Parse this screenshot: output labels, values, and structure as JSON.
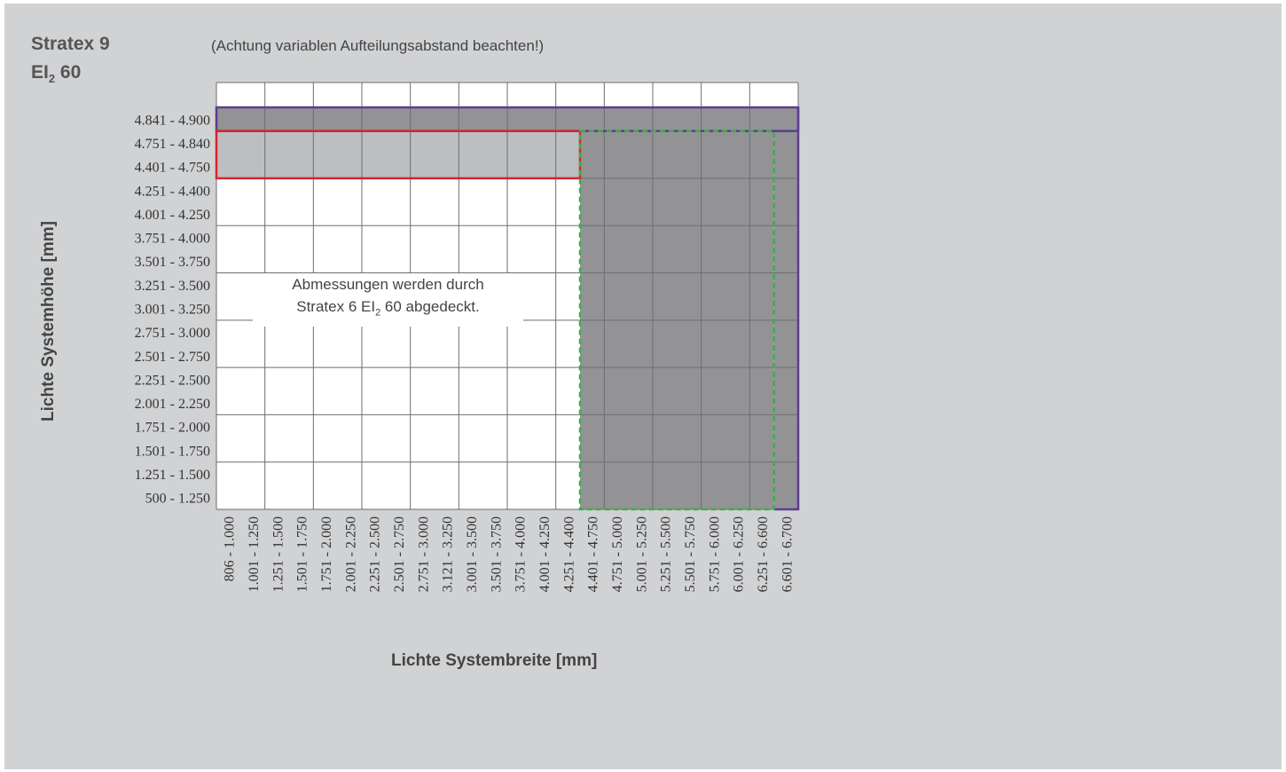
{
  "header": {
    "title_line1": "Stratex 9",
    "title_line2_main": "EI",
    "title_line2_sub": "2",
    "title_line2_rest": " 60",
    "note": "(Achtung variablen Aufteilungsabstand beachten!)"
  },
  "colors": {
    "background": "#d1d2d4",
    "cell_empty": "#ffffff",
    "cell_dark": "#939396",
    "cell_light": "#bdbec1",
    "grid": "#6d6e71",
    "purple_outline": "#5c3d8f",
    "red_outline": "#d9252a",
    "green_dashed": "#3fae49"
  },
  "chart_data": {
    "type": "heatmap",
    "xlabel": "Lichte Systembreite [mm]",
    "ylabel": "Lichte Systemhöhe [mm]",
    "x_categories": [
      "806 - 1.000",
      "1.001 - 1.250",
      "1.251 - 1.500",
      "1.501 - 1.750",
      "1.751 - 2.000",
      "2.001 - 2.250",
      "2.251 - 2.500",
      "2.501 - 2.750",
      "2.751 - 3.000",
      "3.121 - 3.250",
      "3.001 - 3.500",
      "3.501 - 3.750",
      "3.751 - 4.000",
      "4.001 - 4.250",
      "4.251 - 4.400",
      "4.401 - 4.750",
      "4.751 - 5.000",
      "5.001 - 5.250",
      "5.251 - 5.500",
      "5.501 - 5.750",
      "5.751 - 6.000",
      "6.001 - 6.250",
      "6.251 - 6.600",
      "6.601 - 6.700"
    ],
    "y_categories": [
      "4.841 - 4.900",
      "4.751 - 4.840",
      "4.401 - 4.750",
      "4.251 - 4.400",
      "4.001 - 4.250",
      "3.751 - 4.000",
      "3.501 - 3.750",
      "3.251 - 3.500",
      "3.001 - 3.250",
      "2.751 - 3.000",
      "2.501 - 2.750",
      "2.251 - 2.500",
      "2.001 - 2.250",
      "1.751 - 2.000",
      "1.501 - 1.750",
      "1.251 - 1.500",
      "500 - 1.250"
    ],
    "regions": [
      {
        "shade": "dark",
        "outline": "purple",
        "x_from": "806 - 1.000",
        "x_to": "6.601 - 6.700",
        "y_from": "4.841 - 4.900",
        "y_to": "4.841 - 4.900"
      },
      {
        "shade": "light",
        "outline": "red",
        "x_from": "806 - 1.000",
        "x_to": "4.251 - 4.400",
        "y_from": "4.751 - 4.840",
        "y_to": "4.401 - 4.750"
      },
      {
        "shade": "dark",
        "outline": "green-dashed",
        "x_from": "4.401 - 4.750",
        "x_to": "6.251 - 6.600",
        "y_from": "4.751 - 4.840",
        "y_to": "500 - 1.250"
      },
      {
        "shade": "dark",
        "outline": "purple",
        "x_from": "6.601 - 6.700",
        "x_to": "6.601 - 6.700",
        "y_from": "4.751 - 4.840",
        "y_to": "500 - 1.250"
      }
    ],
    "annotation_line1": "Abmessungen werden durch",
    "annotation_line2_main": "Stratex 6 EI",
    "annotation_line2_sub": "2",
    "annotation_line2_rest": " 60 abgedeckt."
  }
}
